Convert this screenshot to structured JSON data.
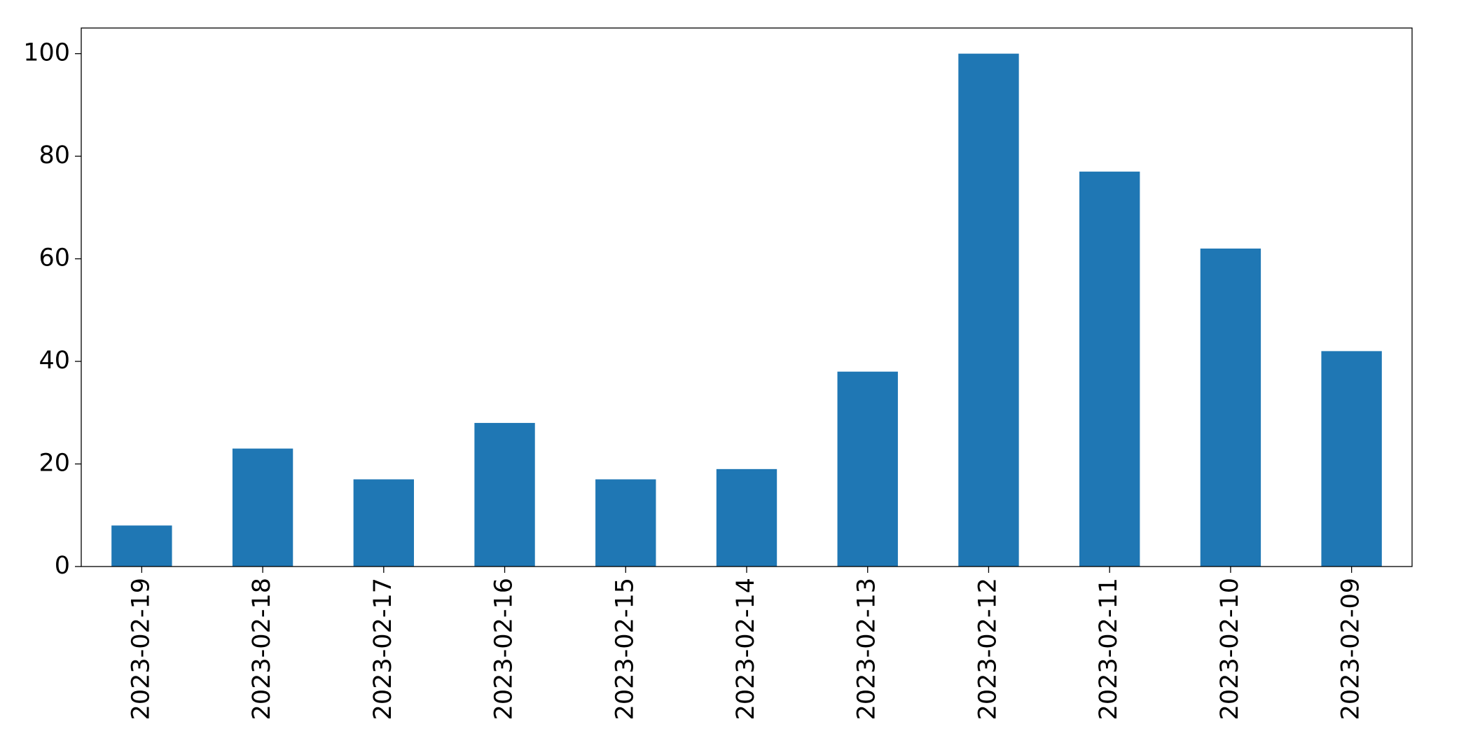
{
  "chart_data": {
    "type": "bar",
    "categories": [
      "2023-02-19",
      "2023-02-18",
      "2023-02-17",
      "2023-02-16",
      "2023-02-15",
      "2023-02-14",
      "2023-02-13",
      "2023-02-12",
      "2023-02-11",
      "2023-02-10",
      "2023-02-09"
    ],
    "values": [
      8,
      23,
      17,
      28,
      17,
      19,
      38,
      100,
      77,
      62,
      42
    ],
    "color": "#1f77b4",
    "ylim": [
      0,
      105
    ],
    "yticks": [
      0,
      20,
      40,
      60,
      80,
      100
    ],
    "grid": false
  }
}
